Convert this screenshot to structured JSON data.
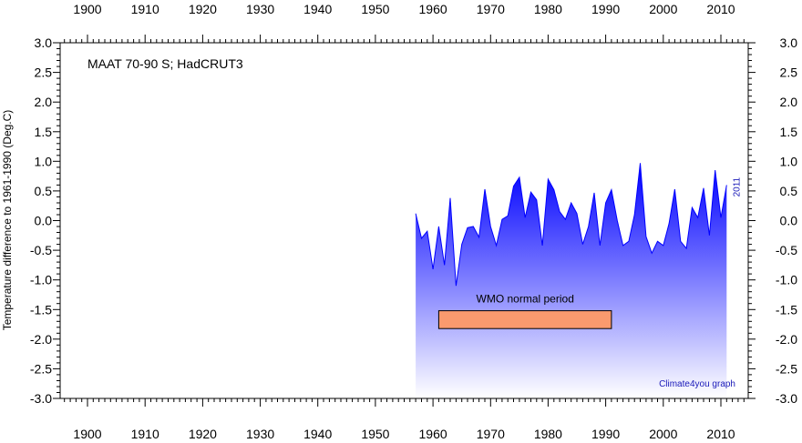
{
  "chart_data": {
    "type": "area",
    "title": "MAAT 70-90 S; HadCRUT3",
    "xlabel": "",
    "ylabel": "Temperature difference to 1961-1990 (Deg.C)",
    "xlim": [
      1900,
      2015
    ],
    "ylim": [
      -3.0,
      3.0
    ],
    "x_ticks": [
      1900,
      1910,
      1920,
      1930,
      1940,
      1950,
      1960,
      1970,
      1980,
      1990,
      2000,
      2010
    ],
    "x_tick_labels": [
      "1900",
      "1910",
      "1920",
      "1930",
      "1940",
      "1950",
      "1960",
      "1970",
      "1980",
      "1990",
      "2000",
      "2010"
    ],
    "y_ticks": [
      -3.0,
      -2.5,
      -2.0,
      -1.5,
      -1.0,
      -0.5,
      0.0,
      0.5,
      1.0,
      1.5,
      2.0,
      2.5,
      3.0
    ],
    "y_tick_labels": [
      "-3.0",
      "-2.5",
      "-2.0",
      "-1.5",
      "-1.0",
      "-0.5",
      "0.0",
      "0.5",
      "1.0",
      "1.5",
      "2.0",
      "2.5",
      "3.0"
    ],
    "grid": false,
    "series": [
      {
        "x": [
          1957,
          1958,
          1959,
          1960,
          1961,
          1962,
          1963,
          1964,
          1965,
          1966,
          1967,
          1968,
          1969,
          1970,
          1971,
          1972,
          1973,
          1974,
          1975,
          1976,
          1977,
          1978,
          1979,
          1980,
          1981,
          1982,
          1983,
          1984,
          1985,
          1986,
          1987,
          1988,
          1989,
          1990,
          1991,
          1992,
          1993,
          1994,
          1995,
          1996,
          1997,
          1998,
          1999,
          2000,
          2001,
          2002,
          2003,
          2004,
          2005,
          2006,
          2007,
          2008,
          2009,
          2010,
          2011
        ],
        "y": [
          0.12,
          -0.3,
          -0.18,
          -0.82,
          -0.1,
          -0.75,
          0.38,
          -1.1,
          -0.4,
          -0.12,
          -0.1,
          -0.28,
          0.53,
          -0.1,
          -0.42,
          0.02,
          0.08,
          0.58,
          0.73,
          0.05,
          0.48,
          0.35,
          -0.42,
          0.7,
          0.52,
          0.15,
          0.02,
          0.3,
          0.12,
          -0.4,
          -0.1,
          0.47,
          -0.42,
          0.3,
          0.52,
          0.0,
          -0.42,
          -0.35,
          0.1,
          0.97,
          -0.27,
          -0.55,
          -0.35,
          -0.42,
          -0.05,
          0.53,
          -0.35,
          -0.47,
          0.22,
          0.05,
          0.55,
          -0.25,
          0.85,
          0.05,
          0.6
        ]
      }
    ],
    "colors": {
      "fill_top": "#0000ff",
      "fill_bottom": "#ffffff",
      "period_bar": "#fa9a6e",
      "note_text": "#1a1ab8"
    },
    "annotations": {
      "wmo_label": "WMO normal period",
      "wmo_period": [
        1961,
        1991
      ],
      "wmo_band_y": [
        -1.52,
        -1.82
      ],
      "end_year_label": "2011",
      "credit": "Climate4you graph"
    }
  }
}
